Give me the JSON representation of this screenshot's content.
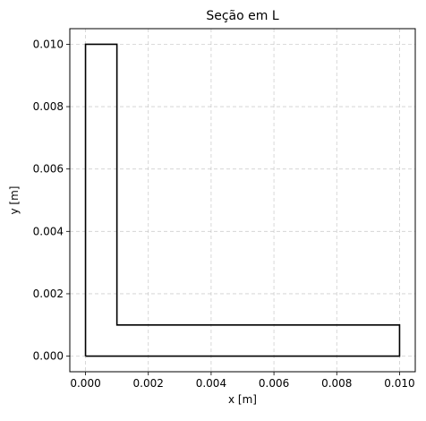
{
  "chart_data": {
    "type": "line",
    "title": "Seção em L",
    "xlabel": "x [m]",
    "ylabel": "y [m]",
    "xlim": [
      -0.0005,
      0.0105
    ],
    "ylim": [
      -0.0005,
      0.0105
    ],
    "xticks": [
      "0.000",
      "0.002",
      "0.004",
      "0.006",
      "0.008",
      "0.010"
    ],
    "yticks": [
      "0.000",
      "0.002",
      "0.004",
      "0.006",
      "0.008",
      "0.010"
    ],
    "grid": true,
    "legend": "none",
    "series": [
      {
        "color": "#000000",
        "x": [
          0.0,
          0.01,
          0.01,
          0.001,
          0.001,
          0.0,
          0.0
        ],
        "y": [
          0.0,
          0.0,
          0.001,
          0.001,
          0.01,
          0.01,
          0.0
        ]
      }
    ],
    "colors": {
      "grid": "#b0b0b0",
      "axes": "#000000",
      "line": "#000000"
    }
  }
}
